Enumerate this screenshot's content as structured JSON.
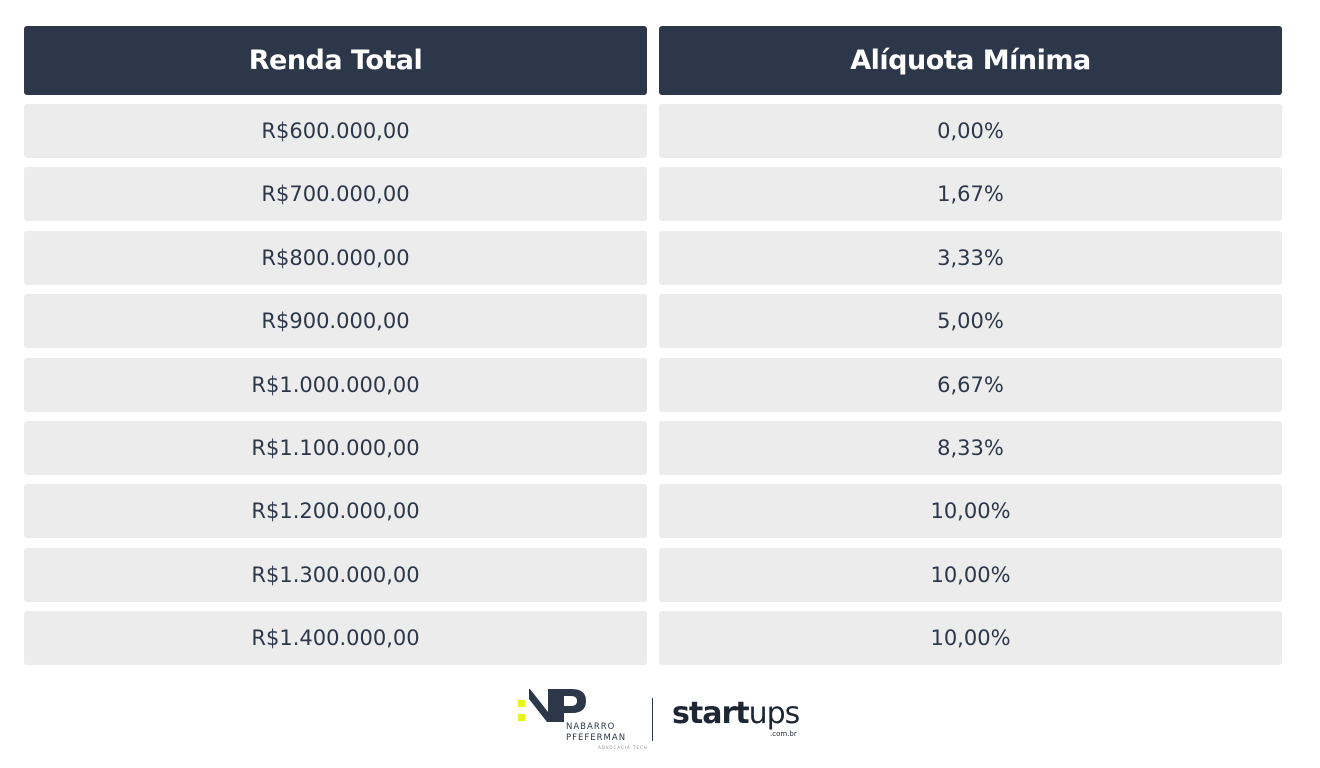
{
  "table": {
    "headers": [
      "Renda Total",
      "Alíquota Mínima"
    ],
    "rows": [
      [
        "R$600.000,00",
        "0,00%"
      ],
      [
        "R$700.000,00",
        "1,67%"
      ],
      [
        "R$800.000,00",
        "3,33%"
      ],
      [
        "R$900.000,00",
        "5,00%"
      ],
      [
        "R$1.000.000,00",
        "6,67%"
      ],
      [
        "R$1.100.000,00",
        "8,33%"
      ],
      [
        "R$1.200.000,00",
        "10,00%"
      ],
      [
        "R$1.300.000,00",
        "10,00%"
      ],
      [
        "R$1.400.000,00",
        "10,00%"
      ]
    ]
  },
  "footer": {
    "np_logo": {
      "line1": "NABARRO",
      "line2": "PFEFERMAN",
      "tagline": "ADVOCACIA TECH",
      "icon": "np-monogram-icon"
    },
    "startups_logo": {
      "bold_part": "start",
      "light_part": "ups",
      "domain": ".com.br"
    }
  },
  "colors": {
    "header_bg": "#2d374a",
    "header_text": "#ffffff",
    "cell_bg": "#ececec",
    "cell_text": "#2d374a",
    "logo_accent": "#e8f51c"
  }
}
